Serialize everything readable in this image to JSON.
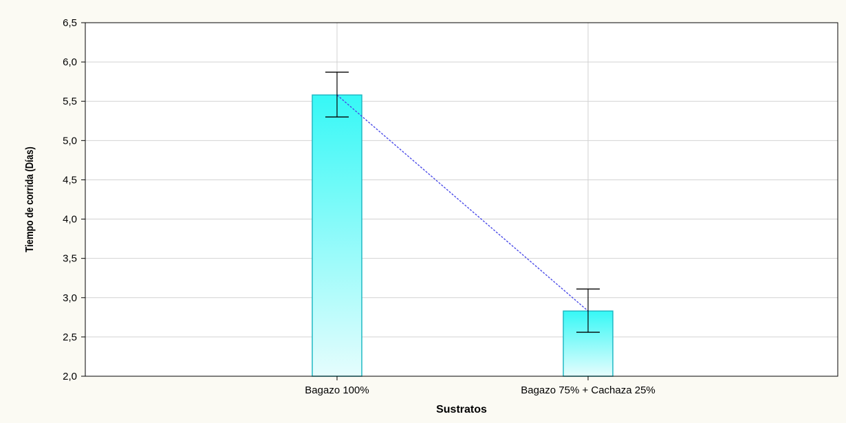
{
  "chart_data": {
    "type": "bar",
    "title": "",
    "xlabel": "Sustratos",
    "ylabel": "Tiempo de corrida (Días)",
    "categories": [
      "Bagazo 100%",
      "Bagazo 75% + Cachaza 25%"
    ],
    "values": [
      5.58,
      2.83
    ],
    "error_upper": [
      5.87,
      3.11
    ],
    "error_lower": [
      5.3,
      2.56
    ],
    "ylim": [
      2.0,
      6.5
    ],
    "yticks": [
      "2,0",
      "2,5",
      "3,0",
      "3,5",
      "4,0",
      "4,5",
      "5,0",
      "5,5",
      "6,0",
      "6,5"
    ],
    "grid": true,
    "legend": "none",
    "colors": {
      "bar_top": "#36f8f6",
      "bar_bottom": "#e5fdfd",
      "bar_border": "#1fb9c4",
      "mean_line": "#4a4ae8",
      "grid": "#d2d2d2",
      "error_bar": "#000000",
      "background": "#fbfaf3",
      "plot_bg": "#ffffff"
    }
  }
}
